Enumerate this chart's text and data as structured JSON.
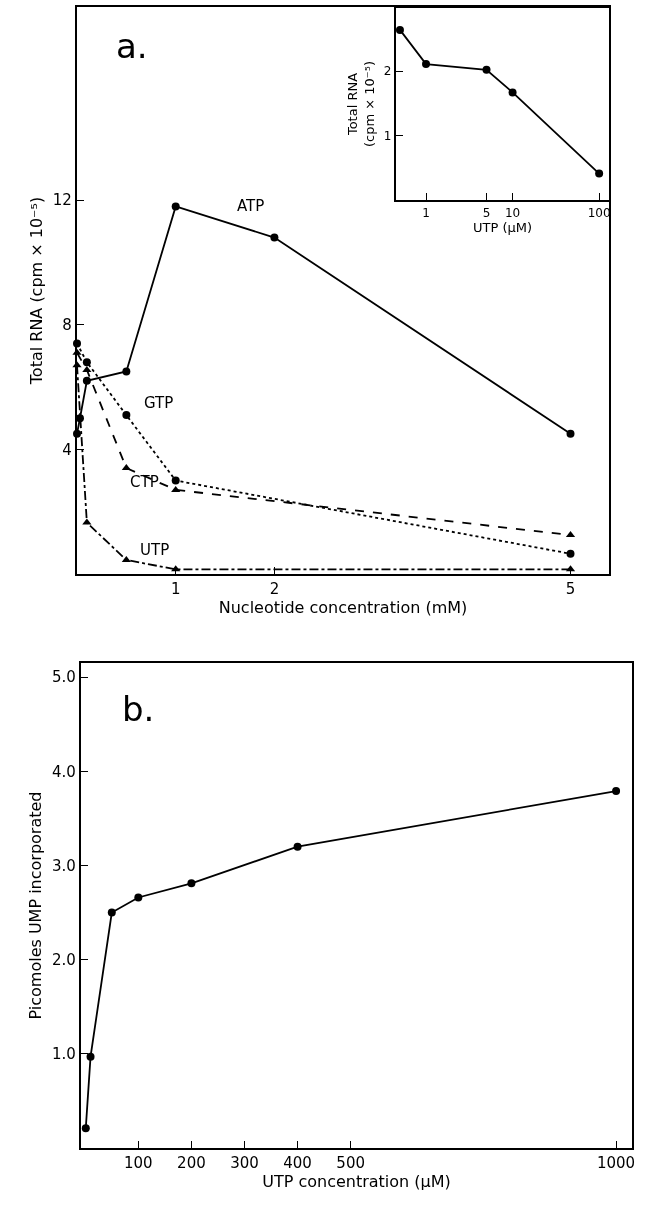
{
  "chart_data": [
    {
      "type": "line",
      "xlabel": "Nucleotide concentration (mM)",
      "ylabel": "Total RNA (cpm × 10⁻⁵)",
      "annotations": [
        "a."
      ],
      "xlim": [
        0,
        5.39
      ],
      "xticks": [
        1,
        2,
        5
      ],
      "ylim": [
        0,
        18.2
      ],
      "yticks": [
        4,
        8,
        12
      ],
      "grid": false,
      "legend": false,
      "series": [
        {
          "name": "ATP",
          "color": "#000000",
          "marker": "circle",
          "line_style": "solid",
          "x": [
            0,
            0.03,
            0.1,
            0.5,
            1,
            2,
            5
          ],
          "values": [
            4.5,
            5.0,
            6.2,
            6.5,
            11.8,
            10.8,
            4.5
          ]
        },
        {
          "name": "GTP",
          "color": "#000000",
          "marker": "circle",
          "line_style": "dotted",
          "x": [
            0,
            0.1,
            0.5,
            1,
            5
          ],
          "values": [
            7.4,
            6.8,
            5.1,
            3.0,
            0.65
          ]
        },
        {
          "name": "CTP",
          "color": "#000000",
          "marker": "triangle",
          "line_style": "dashed",
          "x": [
            0,
            0.1,
            0.5,
            1,
            5
          ],
          "values": [
            7.1,
            6.55,
            3.4,
            2.7,
            1.25
          ]
        },
        {
          "name": "UTP",
          "color": "#000000",
          "marker": "triangle",
          "line_style": "dashdot",
          "x": [
            0,
            0.1,
            0.5,
            1,
            5
          ],
          "values": [
            6.7,
            1.65,
            0.45,
            0.15,
            0.15
          ]
        }
      ]
    },
    {
      "type": "line",
      "xlabel": "UTP (μM)",
      "ylabel": "Total RNA\n(cpm × 10⁻⁵)",
      "log": "x",
      "xlim": [
        0.45,
        130
      ],
      "xticks": [
        1,
        5,
        10,
        100
      ],
      "ylim": [
        0,
        2.98
      ],
      "yticks": [
        1,
        2
      ],
      "grid": false,
      "legend": false,
      "marker": "circle",
      "line_style": "solid",
      "series": [
        {
          "color": "#000000",
          "x": [
            0.5,
            1,
            5,
            10,
            100
          ],
          "values": [
            2.64,
            2.11,
            2.02,
            1.67,
            0.41
          ]
        }
      ]
    },
    {
      "type": "line",
      "xlabel": "UTP concentration (μM)",
      "ylabel": "Picomoles UMP incorporated",
      "annotations": [
        "b."
      ],
      "xlim": [
        -8,
        1030
      ],
      "xticks": [
        100,
        200,
        300,
        400,
        500,
        1000
      ],
      "ylim": [
        0,
        5.15
      ],
      "yticks": [
        {
          "value": 1,
          "label": "1.0"
        },
        {
          "value": 2,
          "label": "2.0"
        },
        {
          "value": 3,
          "label": "3.0"
        },
        {
          "value": 4,
          "label": "4.0"
        },
        {
          "value": 5,
          "label": "5.0"
        }
      ],
      "grid": false,
      "legend": false,
      "marker": "circle",
      "line_style": "solid",
      "series": [
        {
          "color": "#000000",
          "x": [
            1,
            10,
            50,
            100,
            200,
            400,
            1000
          ],
          "values": [
            0.21,
            0.97,
            2.5,
            2.66,
            2.81,
            3.2,
            3.79
          ]
        }
      ]
    }
  ]
}
